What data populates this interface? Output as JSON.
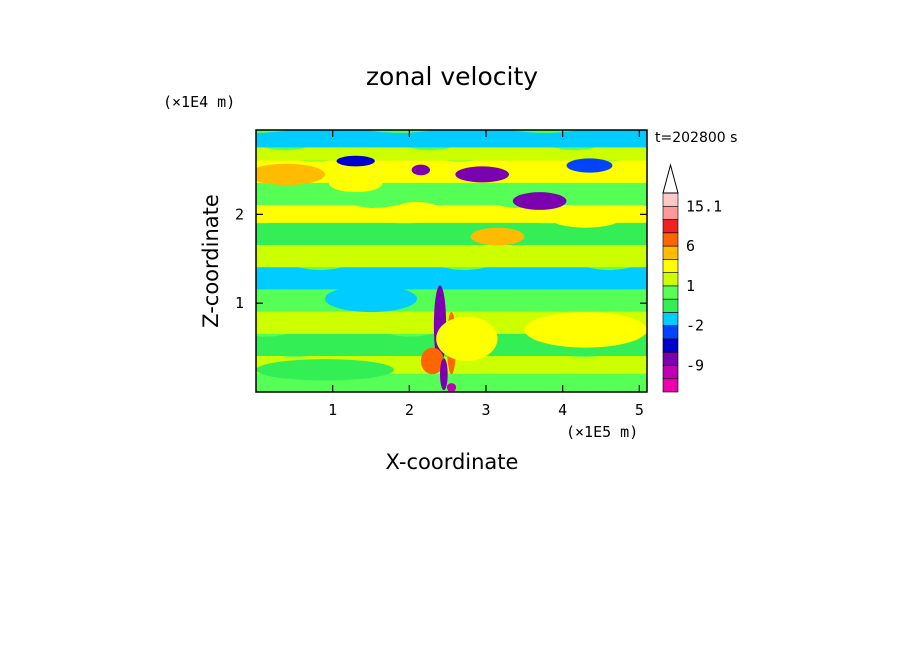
{
  "chart_data": {
    "type": "heatmap",
    "title": "zonal velocity",
    "xlabel": "X-coordinate",
    "ylabel": "Z-coordinate",
    "x_scale_label": "(×1E5 m)",
    "y_scale_label": "(×1E4 m)",
    "time_label": "t=202800 s",
    "xlim": [
      0,
      5.1
    ],
    "ylim": [
      0,
      2.95
    ],
    "x_ticks": [
      1,
      2,
      3,
      4,
      5
    ],
    "y_ticks": [
      1,
      2
    ],
    "x_tick_labels": [
      "1",
      "2",
      "3",
      "4",
      "5"
    ],
    "y_tick_labels": [
      "1",
      "2"
    ],
    "colorbar": {
      "levels": [
        -15,
        -12,
        -9,
        -6,
        -4,
        -2,
        -1,
        0,
        1,
        2,
        4,
        6,
        9,
        12,
        15.1
      ],
      "labels": [
        {
          "text": "15.1",
          "value": 15.1
        },
        {
          "text": "6",
          "value": 6
        },
        {
          "text": "1",
          "value": 1
        },
        {
          "text": "-2",
          "value": -2
        },
        {
          "text": "-9",
          "value": -9
        }
      ],
      "colors": [
        "#ee00aa",
        "#c000b0",
        "#7a00b0",
        "#0000cc",
        "#0044ff",
        "#00ccff",
        "#33ee55",
        "#55ff55",
        "#ccff00",
        "#ffff00",
        "#ffbb00",
        "#ff6600",
        "#ee2222",
        "#ff9999",
        "#ffc8c8"
      ]
    },
    "bands": [
      {
        "z": 0.05,
        "v": 0.5
      },
      {
        "z": 0.25,
        "v": 1.5
      },
      {
        "z": 0.45,
        "v": -0.5
      },
      {
        "z": 0.7,
        "v": 1.5
      },
      {
        "z": 0.95,
        "v": 0.5
      },
      {
        "z": 1.2,
        "v": -1.5
      },
      {
        "z": 1.45,
        "v": 1.5
      },
      {
        "z": 1.7,
        "v": -0.5
      },
      {
        "z": 1.95,
        "v": 2.5
      },
      {
        "z": 2.15,
        "v": 0.5
      },
      {
        "z": 2.4,
        "v": 3.5
      },
      {
        "z": 2.65,
        "v": 1.5
      },
      {
        "z": 2.8,
        "v": -1.5
      }
    ],
    "features": [
      {
        "x": 0.4,
        "z": 2.45,
        "rx": 0.5,
        "rz": 0.12,
        "v": 5
      },
      {
        "x": 1.3,
        "z": 2.35,
        "rx": 0.35,
        "rz": 0.1,
        "v": 4
      },
      {
        "x": 2.1,
        "z": 2.05,
        "rx": 0.3,
        "rz": 0.09,
        "v": 4
      },
      {
        "x": 3.15,
        "z": 1.75,
        "rx": 0.35,
        "rz": 0.1,
        "v": 5
      },
      {
        "x": 4.3,
        "z": 1.95,
        "rx": 0.45,
        "rz": 0.1,
        "v": 3
      },
      {
        "x": 1.3,
        "z": 2.6,
        "rx": 0.25,
        "rz": 0.06,
        "v": -4
      },
      {
        "x": 2.15,
        "z": 2.5,
        "rx": 0.12,
        "rz": 0.06,
        "v": -6
      },
      {
        "x": 2.95,
        "z": 2.45,
        "rx": 0.35,
        "rz": 0.09,
        "v": -7
      },
      {
        "x": 3.7,
        "z": 2.15,
        "rx": 0.35,
        "rz": 0.1,
        "v": -7
      },
      {
        "x": 4.35,
        "z": 2.55,
        "rx": 0.3,
        "rz": 0.08,
        "v": -3
      },
      {
        "x": 2.4,
        "z": 0.75,
        "rx": 0.08,
        "rz": 0.45,
        "v": -7
      },
      {
        "x": 2.55,
        "z": 0.55,
        "rx": 0.06,
        "rz": 0.35,
        "v": 7
      },
      {
        "x": 2.3,
        "z": 0.35,
        "rx": 0.15,
        "rz": 0.15,
        "v": 8
      },
      {
        "x": 2.45,
        "z": 0.2,
        "rx": 0.05,
        "rz": 0.18,
        "v": -6
      },
      {
        "x": 2.55,
        "z": 0.05,
        "rx": 0.06,
        "rz": 0.05,
        "v": -9
      },
      {
        "x": 2.75,
        "z": 0.6,
        "rx": 0.4,
        "rz": 0.25,
        "v": 4
      },
      {
        "x": 0.9,
        "z": 0.25,
        "rx": 0.9,
        "rz": 0.12,
        "v": -0.5
      },
      {
        "x": 4.3,
        "z": 0.7,
        "rx": 0.8,
        "rz": 0.2,
        "v": 2.5
      },
      {
        "x": 1.5,
        "z": 1.05,
        "rx": 0.6,
        "rz": 0.15,
        "v": -1.5
      }
    ]
  }
}
